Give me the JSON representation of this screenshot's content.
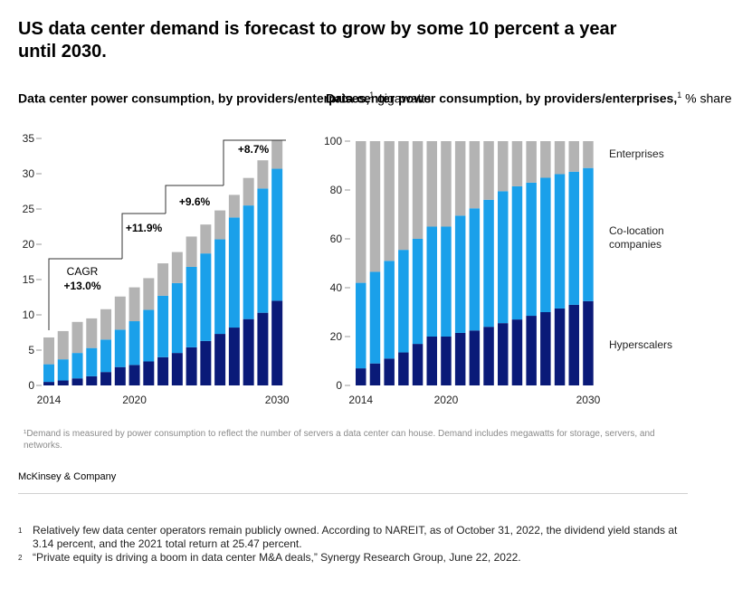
{
  "title": "US data center demand is forecast to grow by some 10 percent a year until 2030.",
  "colors": {
    "hyperscalers": "#0a1a78",
    "colocation": "#1aa0ea",
    "enterprises": "#b3b3b3"
  },
  "left_chart": {
    "title_bold": "Data center power consumption, by providers/enterprises,",
    "footnote_ref": "1",
    "unit": "gigawatts"
  },
  "right_chart": {
    "title_bold": "Data center power consumption, by providers/enterprises,",
    "footnote_ref": "1",
    "unit": "% share"
  },
  "chart_data": [
    {
      "type": "bar",
      "stacked": true,
      "title": "Data center power consumption, by providers/enterprises, gigawatts",
      "categories": [
        "2014",
        "2015",
        "2016",
        "2017",
        "2018",
        "2019",
        "2020",
        "2021",
        "2022",
        "2023",
        "2024",
        "2025",
        "2026",
        "2027",
        "2028",
        "2029",
        "2030"
      ],
      "x_tick_labels": [
        "2014",
        "2020",
        "2030"
      ],
      "ylim": [
        0,
        35
      ],
      "y_ticks": [
        "0",
        "5",
        "10",
        "15",
        "20",
        "25",
        "30",
        "35"
      ],
      "series": [
        {
          "name": "Hyperscalers",
          "values": [
            0.5,
            0.7,
            1.0,
            1.3,
            1.9,
            2.6,
            2.9,
            3.4,
            4.0,
            4.6,
            5.4,
            6.3,
            7.3,
            8.2,
            9.4,
            10.3,
            12.0
          ]
        },
        {
          "name": "Co-location companies",
          "values": [
            2.5,
            3.0,
            3.6,
            4.0,
            4.6,
            5.3,
            6.2,
            7.3,
            8.7,
            9.9,
            11.4,
            12.4,
            13.4,
            15.6,
            16.1,
            17.6,
            18.7
          ]
        },
        {
          "name": "Enterprises",
          "values": [
            3.8,
            4.0,
            4.4,
            4.2,
            4.3,
            4.7,
            4.8,
            4.5,
            4.6,
            4.4,
            4.3,
            4.1,
            4.1,
            3.2,
            3.9,
            4.0,
            4.1
          ]
        }
      ],
      "annotations": [
        {
          "label": "CAGR",
          "value": "+13.0%"
        },
        {
          "value": "+11.9%"
        },
        {
          "value": "+9.6%"
        },
        {
          "value": "+8.7%"
        }
      ]
    },
    {
      "type": "bar",
      "stacked": true,
      "title": "Data center power consumption, by providers/enterprises, % share",
      "categories": [
        "2014",
        "2015",
        "2016",
        "2017",
        "2018",
        "2019",
        "2020",
        "2021",
        "2022",
        "2023",
        "2024",
        "2025",
        "2026",
        "2027",
        "2028",
        "2029",
        "2030"
      ],
      "x_tick_labels": [
        "2014",
        "2020",
        "2030"
      ],
      "ylim": [
        0,
        100
      ],
      "y_ticks": [
        "0",
        "20",
        "40",
        "60",
        "80",
        "100"
      ],
      "series": [
        {
          "name": "Hyperscalers",
          "values": [
            7,
            9,
            11,
            13.5,
            17,
            20,
            20,
            21.5,
            22.5,
            24,
            25.5,
            27,
            28.5,
            30,
            31.5,
            33,
            34.5
          ]
        },
        {
          "name": "Co-location companies",
          "values": [
            35,
            37.5,
            40,
            42,
            43,
            45,
            45,
            48,
            50,
            52,
            54,
            54.5,
            54.5,
            55,
            55,
            54.5,
            54.5
          ]
        },
        {
          "name": "Enterprises",
          "values": [
            58,
            53.5,
            49,
            44.5,
            40,
            35,
            35,
            30.5,
            27.5,
            24,
            20.5,
            18.5,
            17,
            15,
            13.5,
            12.5,
            11
          ]
        }
      ],
      "legend": [
        "Enterprises",
        "Co-location companies",
        "Hyperscalers"
      ]
    }
  ],
  "note": "¹Demand is measured by power consumption to reflect the number of servers a data center can house. Demand includes megawatts for storage, servers, and networks.",
  "brand": "McKinsey & Company",
  "footnotes": [
    {
      "num": "1",
      "text": "Relatively few data center operators remain publicly owned. According to NAREIT, as of October 31, 2022, the dividend yield stands at 3.14 percent, and the 2021 total return at 25.47 percent."
    },
    {
      "num": "2",
      "text": "“Private equity is driving a boom in data center M&A deals,” Synergy Research Group, June 22, 2022."
    }
  ]
}
